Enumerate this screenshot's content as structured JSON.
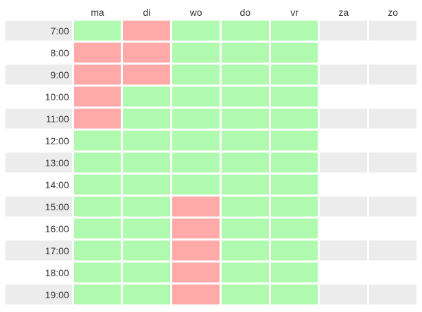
{
  "colors": {
    "available": "#b0fab0",
    "unavailable": "#ffa9a9",
    "stripe": "#ececec",
    "text": "#333333",
    "background": "#ffffff"
  },
  "days": [
    "ma",
    "di",
    "wo",
    "do",
    "vr",
    "za",
    "zo"
  ],
  "rows": [
    {
      "time": "7:00",
      "cells": [
        "available",
        "unavailable",
        "available",
        "available",
        "available",
        "empty",
        "empty"
      ]
    },
    {
      "time": "8:00",
      "cells": [
        "unavailable",
        "unavailable",
        "available",
        "available",
        "available",
        "empty",
        "empty"
      ]
    },
    {
      "time": "9:00",
      "cells": [
        "unavailable",
        "unavailable",
        "available",
        "available",
        "available",
        "empty",
        "empty"
      ]
    },
    {
      "time": "10:00",
      "cells": [
        "unavailable",
        "available",
        "available",
        "available",
        "available",
        "empty",
        "empty"
      ]
    },
    {
      "time": "11:00",
      "cells": [
        "unavailable",
        "available",
        "available",
        "available",
        "available",
        "empty",
        "empty"
      ]
    },
    {
      "time": "12:00",
      "cells": [
        "available",
        "available",
        "available",
        "available",
        "available",
        "empty",
        "empty"
      ]
    },
    {
      "time": "13:00",
      "cells": [
        "available",
        "available",
        "available",
        "available",
        "available",
        "empty",
        "empty"
      ]
    },
    {
      "time": "14:00",
      "cells": [
        "available",
        "available",
        "available",
        "available",
        "available",
        "empty",
        "empty"
      ]
    },
    {
      "time": "15:00",
      "cells": [
        "available",
        "available",
        "unavailable",
        "available",
        "available",
        "empty",
        "empty"
      ]
    },
    {
      "time": "16:00",
      "cells": [
        "available",
        "available",
        "unavailable",
        "available",
        "available",
        "empty",
        "empty"
      ]
    },
    {
      "time": "17:00",
      "cells": [
        "available",
        "available",
        "unavailable",
        "available",
        "available",
        "empty",
        "empty"
      ]
    },
    {
      "time": "18:00",
      "cells": [
        "available",
        "available",
        "unavailable",
        "available",
        "available",
        "empty",
        "empty"
      ]
    },
    {
      "time": "19:00",
      "cells": [
        "available",
        "available",
        "unavailable",
        "available",
        "available",
        "empty",
        "empty"
      ]
    }
  ]
}
